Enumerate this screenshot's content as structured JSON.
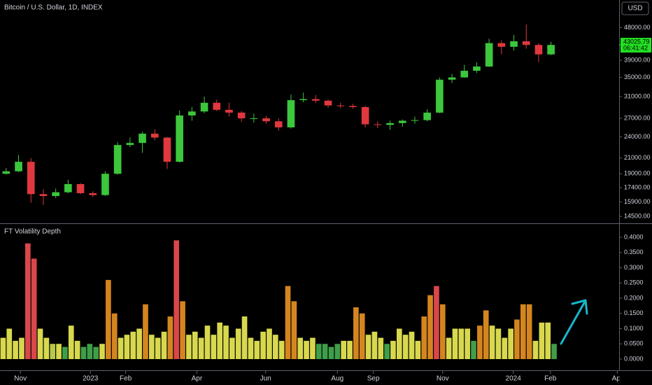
{
  "header": {
    "symbol_title": "Bitcoin / U.S. Dollar, 1D, INDEX",
    "currency": "USD"
  },
  "chart_data": [
    {
      "type": "candlestick",
      "log_scale": true,
      "grid": false,
      "up_color": "#3cc73c",
      "down_color": "#e0383e",
      "open": [
        19000,
        19300,
        20500,
        16700,
        16500,
        16900,
        17800,
        16800,
        16600,
        19000,
        22800,
        23100,
        24500,
        23900,
        20500,
        27500,
        28200,
        29800,
        28500,
        28000,
        27000,
        27000,
        26500,
        25500,
        30300,
        30500,
        30200,
        29300,
        29200,
        29000,
        26000,
        25900,
        26200,
        26600,
        26700,
        28000,
        34500,
        35000,
        36500,
        37500,
        43500,
        42500,
        44000,
        43000,
        40500
      ],
      "high": [
        19700,
        21400,
        21000,
        17200,
        17300,
        18300,
        17900,
        17000,
        19300,
        23200,
        23900,
        24800,
        25200,
        24000,
        28400,
        29000,
        31000,
        30400,
        29800,
        28300,
        27800,
        27400,
        27000,
        31400,
        31800,
        31300,
        30400,
        29800,
        29600,
        29200,
        26500,
        26600,
        26800,
        27300,
        28600,
        35000,
        35800,
        37900,
        38500,
        44700,
        44300,
        45800,
        48900,
        43500,
        43900
      ],
      "low": [
        18900,
        19200,
        15800,
        15600,
        16300,
        16800,
        16700,
        16400,
        16500,
        18900,
        22500,
        21700,
        23500,
        19600,
        20400,
        26600,
        27900,
        28300,
        27300,
        26400,
        26300,
        26100,
        25000,
        25300,
        29900,
        29800,
        28900,
        28800,
        28700,
        25500,
        25400,
        25100,
        25600,
        26100,
        26500,
        27900,
        33800,
        34900,
        36000,
        37400,
        40500,
        41500,
        42000,
        38600,
        40300
      ],
      "close": [
        19300,
        20500,
        16700,
        16500,
        16900,
        17800,
        16800,
        16600,
        19000,
        22800,
        23100,
        24500,
        23900,
        20500,
        27500,
        28200,
        29800,
        28500,
        28000,
        27000,
        27000,
        26500,
        25500,
        30300,
        30500,
        30200,
        29300,
        29200,
        29000,
        26000,
        25900,
        26200,
        26600,
        26700,
        28000,
        34500,
        35000,
        36500,
        37500,
        43500,
        42500,
        44000,
        43000,
        40500,
        43000
      ],
      "xlim": [
        0,
        50
      ],
      "ylim": [
        13880,
        57170
      ],
      "yticks": [
        {
          "value": 48000,
          "label": "48000.00"
        },
        {
          "value": 39000,
          "label": "39000.00"
        },
        {
          "value": 35000,
          "label": "35000.00"
        },
        {
          "value": 31000,
          "label": "31000.00"
        },
        {
          "value": 27000,
          "label": "27000.00"
        },
        {
          "value": 24000,
          "label": "24000.00"
        },
        {
          "value": 21000,
          "label": "21000.00"
        },
        {
          "value": 19000,
          "label": "19000.00"
        },
        {
          "value": 17400,
          "label": "17400.00"
        },
        {
          "value": 15900,
          "label": "15900.00"
        },
        {
          "value": 14500,
          "label": "14500.00"
        }
      ],
      "last_price": 43025.79,
      "countdown": "06:41:42",
      "last_price_color": "#22e022"
    },
    {
      "type": "bar",
      "title": "FT Volatility Depth",
      "values": [
        0.07,
        0.1,
        0.06,
        0.07,
        0.38,
        0.33,
        0.1,
        0.07,
        0.05,
        0.05,
        0.04,
        0.11,
        0.06,
        0.04,
        0.05,
        0.04,
        0.05,
        0.26,
        0.15,
        0.07,
        0.08,
        0.09,
        0.1,
        0.18,
        0.08,
        0.07,
        0.09,
        0.14,
        0.39,
        0.19,
        0.08,
        0.09,
        0.07,
        0.11,
        0.08,
        0.12,
        0.11,
        0.07,
        0.1,
        0.14,
        0.07,
        0.06,
        0.09,
        0.1,
        0.08,
        0.06,
        0.24,
        0.19,
        0.07,
        0.06,
        0.07,
        0.05,
        0.05,
        0.04,
        0.05,
        0.06,
        0.06,
        0.17,
        0.15,
        0.08,
        0.09,
        0.07,
        0.05,
        0.06,
        0.1,
        0.08,
        0.09,
        0.06,
        0.14,
        0.21,
        0.24,
        0.18,
        0.07,
        0.1,
        0.1,
        0.1,
        0.06,
        0.11,
        0.16,
        0.11,
        0.1,
        0.07,
        0.1,
        0.13,
        0.18,
        0.18,
        0.06,
        0.12,
        0.12,
        0.05
      ],
      "colors": [
        "#d8d84e",
        "#d8d84e",
        "#d8d84e",
        "#d8d84e",
        "#d9474b",
        "#d9474b",
        "#d8d84e",
        "#d8d84e",
        "#b8c84a",
        "#d8d84e",
        "#3f9e4a",
        "#d8d84e",
        "#d8d84e",
        "#3f9e4a",
        "#3f9e4a",
        "#3f9e4a",
        "#d8d84e",
        "#d5851f",
        "#d5851f",
        "#d8d84e",
        "#d8d84e",
        "#d8d84e",
        "#d8d84e",
        "#d5851f",
        "#d8d84e",
        "#d8d84e",
        "#d8d84e",
        "#d5851f",
        "#d9474b",
        "#d5851f",
        "#d8d84e",
        "#d8d84e",
        "#d8d84e",
        "#d8d84e",
        "#d8d84e",
        "#d8d84e",
        "#d8d84e",
        "#d8d84e",
        "#d8d84e",
        "#d8d84e",
        "#d8d84e",
        "#d8d84e",
        "#d8d84e",
        "#d8d84e",
        "#d8d84e",
        "#d8d84e",
        "#d5851f",
        "#d5851f",
        "#d8d84e",
        "#d8d84e",
        "#d8d84e",
        "#3f9e4a",
        "#3f9e4a",
        "#3f9e4a",
        "#3f9e4a",
        "#d8d84e",
        "#d8d84e",
        "#d5851f",
        "#d5851f",
        "#d8d84e",
        "#d8d84e",
        "#d8d84e",
        "#3f9e4a",
        "#d8d84e",
        "#d8d84e",
        "#d8d84e",
        "#d8d84e",
        "#d8d84e",
        "#d5851f",
        "#d5851f",
        "#d9474b",
        "#d5851f",
        "#d8d84e",
        "#d8d84e",
        "#d8d84e",
        "#d8d84e",
        "#3f9e4a",
        "#d5851f",
        "#d5851f",
        "#d8d84e",
        "#d8d84e",
        "#d8d84e",
        "#d8d84e",
        "#d5851f",
        "#d5851f",
        "#d5851f",
        "#d8d84e",
        "#d8d84e",
        "#d8d84e",
        "#3f9e4a"
      ],
      "xlim": [
        0,
        100
      ],
      "xticks": [
        {
          "value": 3.3,
          "label": "Nov"
        },
        {
          "value": 14.6,
          "label": "2023"
        },
        {
          "value": 20.3,
          "label": "Feb"
        },
        {
          "value": 31.8,
          "label": "Apr"
        },
        {
          "value": 42.9,
          "label": "Jun"
        },
        {
          "value": 54.5,
          "label": "Aug"
        },
        {
          "value": 60.3,
          "label": "Sep"
        },
        {
          "value": 71.5,
          "label": "Nov"
        },
        {
          "value": 82.9,
          "label": "2024"
        },
        {
          "value": 88.9,
          "label": "Feb"
        },
        {
          "value": 99.7,
          "label": "Apr"
        }
      ],
      "ylim": [
        -0.0115,
        0.4437
      ],
      "yticks": [
        {
          "value": 0.4,
          "label": "0.4000"
        },
        {
          "value": 0.35,
          "label": "0.3500"
        },
        {
          "value": 0.3,
          "label": "0.3000"
        },
        {
          "value": 0.25,
          "label": "0.2500"
        },
        {
          "value": 0.2,
          "label": "0.2000"
        },
        {
          "value": 0.15,
          "label": "0.1500"
        },
        {
          "value": 0.1,
          "label": "0.1000"
        },
        {
          "value": 0.05,
          "label": "0.0500"
        },
        {
          "value": 0,
          "label": "0.0000"
        }
      ],
      "grid": false
    }
  ]
}
